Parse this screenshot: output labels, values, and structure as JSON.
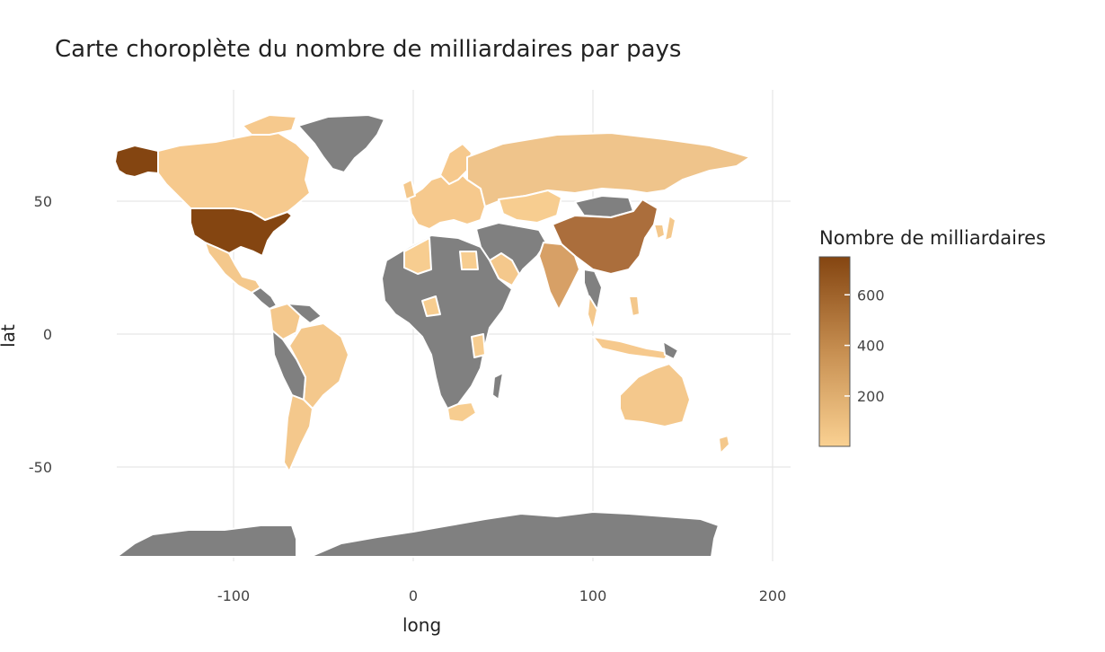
{
  "chart_data": {
    "type": "choropleth",
    "title": "Carte choroplète du nombre de milliardaires par pays",
    "xlabel": "long",
    "ylabel": "lat",
    "x_ticks": [
      -100,
      0,
      100,
      200
    ],
    "y_ticks": [
      50,
      0,
      -50
    ],
    "xlim": [
      -180,
      210
    ],
    "ylim": [
      -84,
      84
    ],
    "grid": true,
    "legend": {
      "title": "Nombre de milliardaires",
      "ticks": [
        200,
        400,
        600
      ],
      "range": [
        1,
        750
      ],
      "color_low": "#fad192",
      "color_high": "#844511",
      "na_color": "#808080",
      "placement": "right"
    }
  }
}
